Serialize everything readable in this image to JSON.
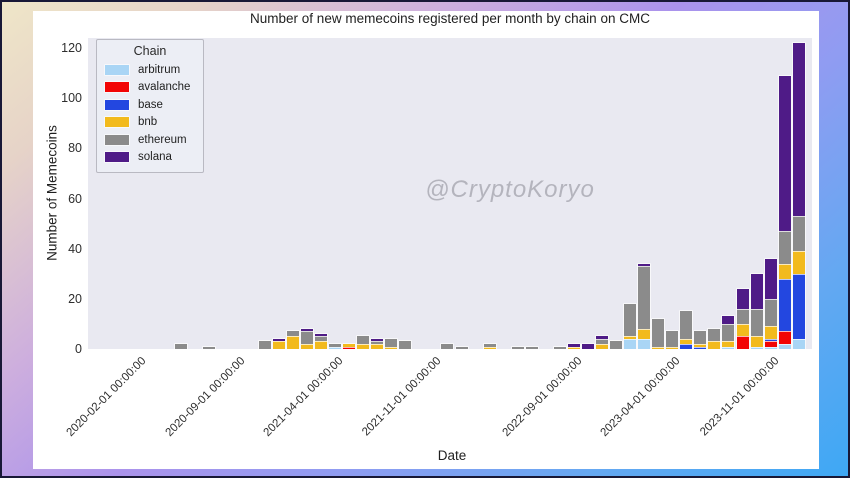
{
  "page": {
    "watermark": "@CryptoKoryo"
  },
  "style": {
    "plot_background": "#e9e9f1",
    "figure_background": "#ffffff",
    "outer_border": "#181836",
    "frame_gradient": [
      "#efe6c8",
      "#cdaede",
      "#ab93ec",
      "#8f9cf2",
      "#3ea8f4"
    ],
    "watermark_color": "#b4b4bd"
  },
  "chart_data": {
    "type": "stacked_bar",
    "title": "Number of new memecoins registered per month by chain on CMC",
    "xlabel": "Date",
    "ylabel": "Number of Memecoins",
    "legend_title": "Chain",
    "legend_position": "upper left",
    "grid": false,
    "ylim": [
      0,
      124
    ],
    "yticks": [
      0,
      20,
      40,
      60,
      80,
      100,
      120
    ],
    "categories": [
      "2020-01",
      "2020-02",
      "2020-03",
      "2020-04",
      "2020-05",
      "2020-06",
      "2020-07",
      "2020-08",
      "2020-09",
      "2020-10",
      "2020-11",
      "2020-12",
      "2021-01",
      "2021-02",
      "2021-03",
      "2021-04",
      "2021-05",
      "2021-06",
      "2021-07",
      "2021-08",
      "2021-09",
      "2021-10",
      "2021-11",
      "2021-12",
      "2022-01",
      "2022-02",
      "2022-03",
      "2022-04",
      "2022-05",
      "2022-06",
      "2022-07",
      "2022-08",
      "2022-09",
      "2022-10",
      "2022-11",
      "2022-12",
      "2023-01",
      "2023-02",
      "2023-03",
      "2023-04",
      "2023-05",
      "2023-06",
      "2023-07",
      "2023-08",
      "2023-09",
      "2023-10",
      "2023-11",
      "2023-12",
      "2024-01"
    ],
    "xtick_indices": [
      1,
      8,
      15,
      22,
      32,
      39,
      46
    ],
    "xtick_labels": [
      "2020-02-01 00:00:00",
      "2020-09-01 00:00:00",
      "2021-04-01 00:00:00",
      "2021-11-01 00:00:00",
      "2022-09-01 00:00:00",
      "2023-04-01 00:00:00",
      "2023-11-01 00:00:00"
    ],
    "series": [
      {
        "name": "arbitrum",
        "color": "#a9d5f5",
        "values": [
          0,
          0,
          0,
          0,
          0,
          0,
          0,
          0,
          0,
          0,
          0,
          0,
          0,
          0,
          0,
          1,
          0,
          0,
          0,
          0,
          0,
          0,
          0,
          0,
          0,
          0,
          0,
          0,
          0,
          0,
          0,
          0,
          0,
          0,
          0,
          0,
          4,
          4,
          0,
          0,
          0,
          0,
          0,
          1,
          0,
          1,
          1,
          2,
          4
        ]
      },
      {
        "name": "avalanche",
        "color": "#f20505",
        "values": [
          0,
          0,
          0,
          0,
          0,
          0,
          0,
          0,
          0,
          0,
          0,
          0,
          0,
          0,
          0,
          0,
          1,
          0,
          0,
          0,
          0,
          0,
          0,
          0,
          0,
          0,
          0,
          0,
          0,
          0,
          0,
          0,
          0,
          0,
          0,
          0,
          0,
          0,
          0,
          0,
          0,
          0,
          0,
          0,
          5,
          0,
          2,
          5,
          0
        ]
      },
      {
        "name": "base",
        "color": "#2347e0",
        "values": [
          0,
          0,
          0,
          0,
          0,
          0,
          0,
          0,
          0,
          0,
          0,
          0,
          0,
          0,
          0,
          0,
          0,
          0,
          0,
          0,
          0,
          0,
          0,
          0,
          0,
          0,
          0,
          0,
          0,
          0,
          0,
          0,
          0,
          0,
          0,
          0,
          0,
          0,
          0,
          0,
          2,
          1,
          0,
          0,
          0,
          0,
          1,
          21,
          26
        ]
      },
      {
        "name": "bnb",
        "color": "#f2ba1d",
        "values": [
          0,
          0,
          0,
          0,
          0,
          0,
          0,
          0,
          0,
          0,
          0,
          3,
          5,
          2,
          3,
          0,
          1,
          2,
          2,
          1,
          0,
          0,
          0,
          0,
          0,
          0,
          1,
          0,
          0,
          0,
          0,
          0,
          1,
          0,
          2,
          0,
          1,
          4,
          1,
          1,
          2,
          1,
          3,
          2,
          5,
          4,
          5,
          6,
          9
        ]
      },
      {
        "name": "ethereum",
        "color": "#8b8b8b",
        "values": [
          0,
          0,
          0,
          0,
          2,
          0,
          1,
          0,
          0,
          0,
          3,
          0,
          2,
          5,
          2,
          1,
          0,
          3,
          1,
          3,
          3,
          0,
          0,
          2,
          1,
          0,
          1,
          0,
          1,
          1,
          0,
          1,
          0,
          0,
          2,
          3,
          13,
          25,
          11,
          6,
          11,
          5,
          5,
          7,
          6,
          11,
          11,
          13,
          14
        ]
      },
      {
        "name": "solana",
        "color": "#4f1b87",
        "values": [
          0,
          0,
          0,
          0,
          0,
          0,
          0,
          0,
          0,
          0,
          0,
          1,
          0,
          1,
          1,
          0,
          0,
          0,
          1,
          0,
          0,
          0,
          0,
          0,
          0,
          0,
          0,
          0,
          0,
          0,
          0,
          0,
          1,
          2,
          1,
          0,
          0,
          1,
          0,
          0,
          0,
          0,
          0,
          3,
          8,
          14,
          16,
          62,
          69
        ]
      }
    ]
  }
}
